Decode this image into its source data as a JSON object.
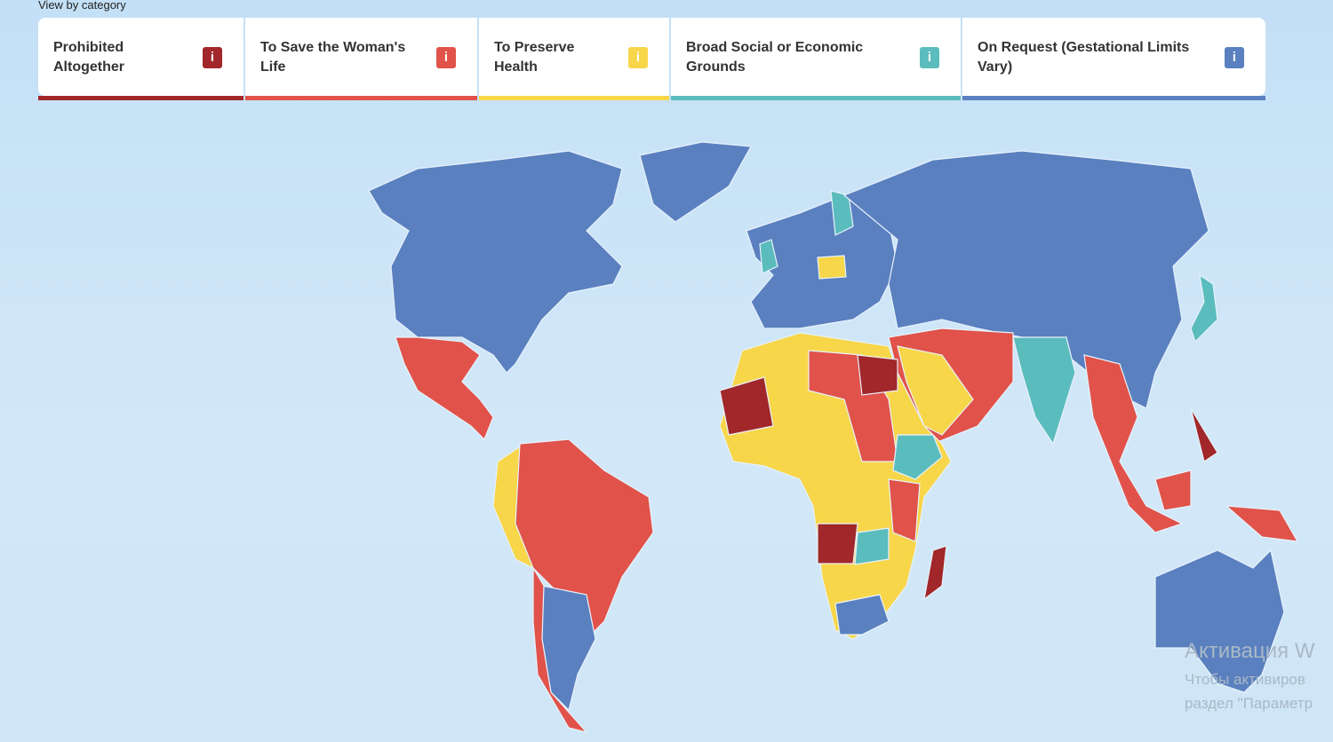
{
  "header": {
    "label": "View by category"
  },
  "categories": [
    {
      "label": "Prohibited Altogether",
      "icon": "i",
      "color": "#a1272a"
    },
    {
      "label": "To Save the Woman's Life",
      "icon": "i",
      "color": "#e0524a"
    },
    {
      "label": "To Preserve Health",
      "icon": "i",
      "color": "#f7d64a"
    },
    {
      "label": "Broad Social or Economic Grounds",
      "icon": "i",
      "color": "#5bbcbd"
    },
    {
      "label": "On Request (Gestational Limits Vary)",
      "icon": "i",
      "color": "#5a80bf"
    }
  ],
  "watermark": {
    "title": "Активация W",
    "line1": "Чтобы активиров",
    "line2": "раздел \"Параметр"
  }
}
